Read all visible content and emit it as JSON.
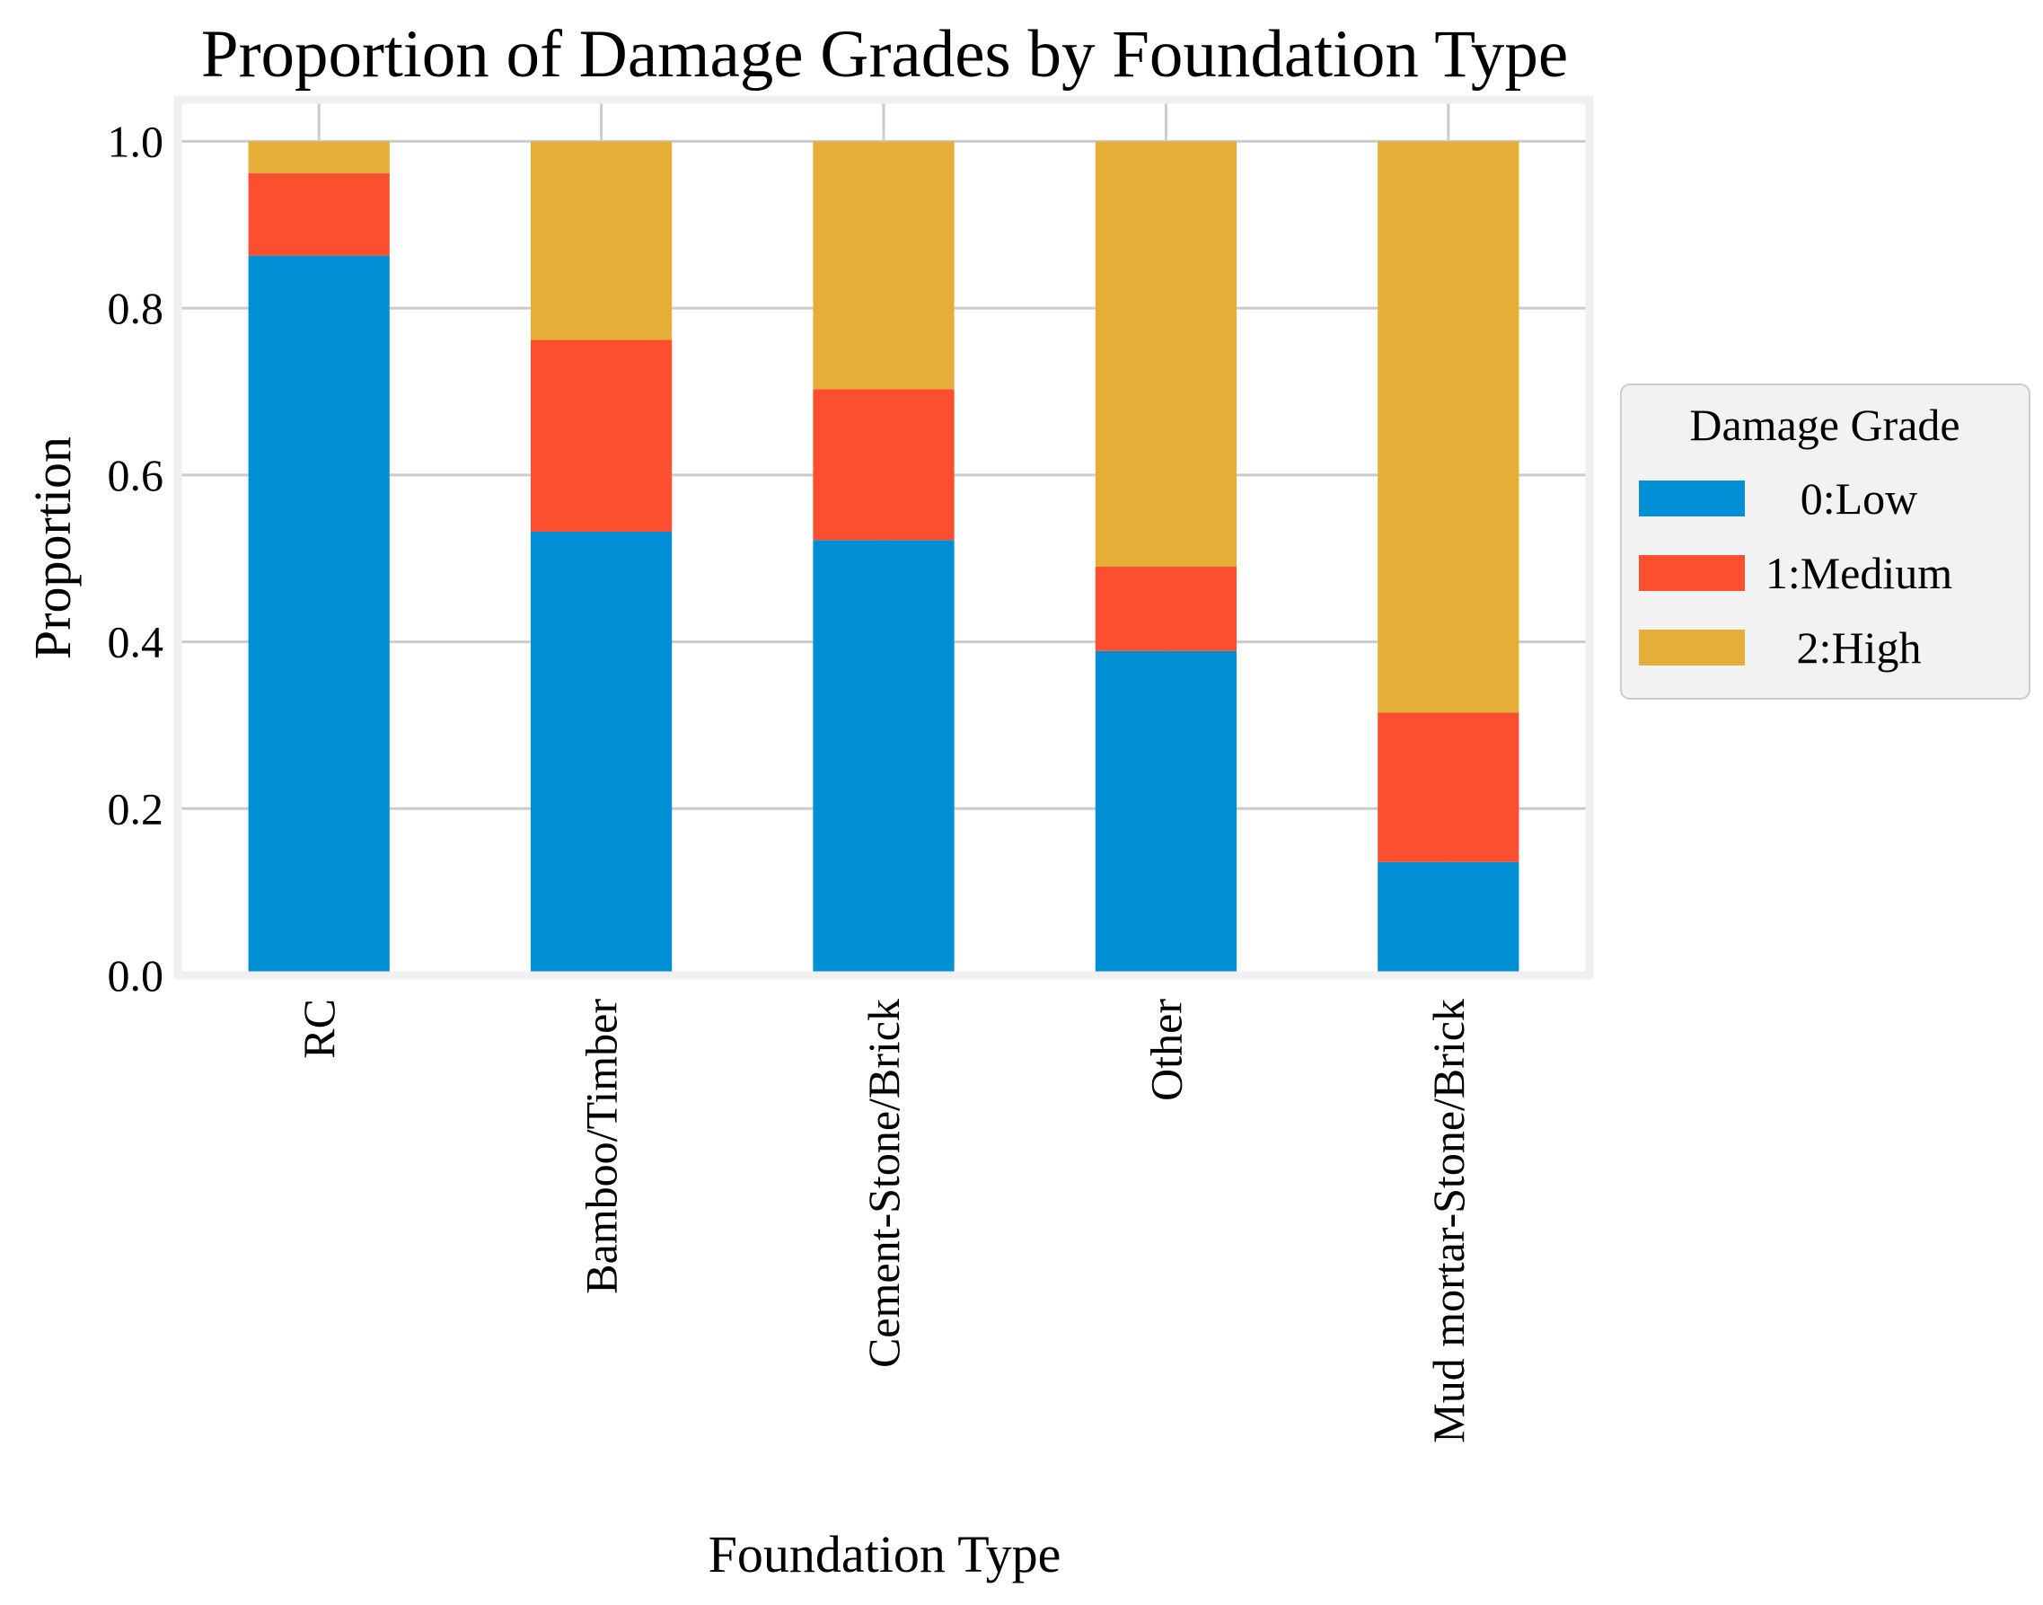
{
  "chart_data": {
    "type": "bar",
    "stacked": true,
    "title": "Proportion of Damage Grades by Foundation Type",
    "xlabel": "Foundation Type",
    "ylabel": "Proportion",
    "ylim": [
      0,
      1.05
    ],
    "yticks": [
      "0.0",
      "0.2",
      "0.4",
      "0.6",
      "0.8",
      "1.0"
    ],
    "categories": [
      "RC",
      "Bamboo/Timber",
      "Cement-Stone/Brick",
      "Other",
      "Mud mortar-Stone/Brick"
    ],
    "series": [
      {
        "name": "0:Low",
        "color": "#008FD5",
        "values": [
          0.863,
          0.532,
          0.522,
          0.389,
          0.136
        ]
      },
      {
        "name": "1:Medium",
        "color": "#FC4F30",
        "values": [
          0.099,
          0.23,
          0.181,
          0.101,
          0.179
        ]
      },
      {
        "name": "2:High",
        "color": "#E5AE38",
        "values": [
          0.038,
          0.238,
          0.297,
          0.51,
          0.685
        ]
      }
    ],
    "legend": {
      "title": "Damage Grade",
      "placement": "center-right-outside"
    },
    "grid": true,
    "x_tick_rotation": "vertical"
  }
}
